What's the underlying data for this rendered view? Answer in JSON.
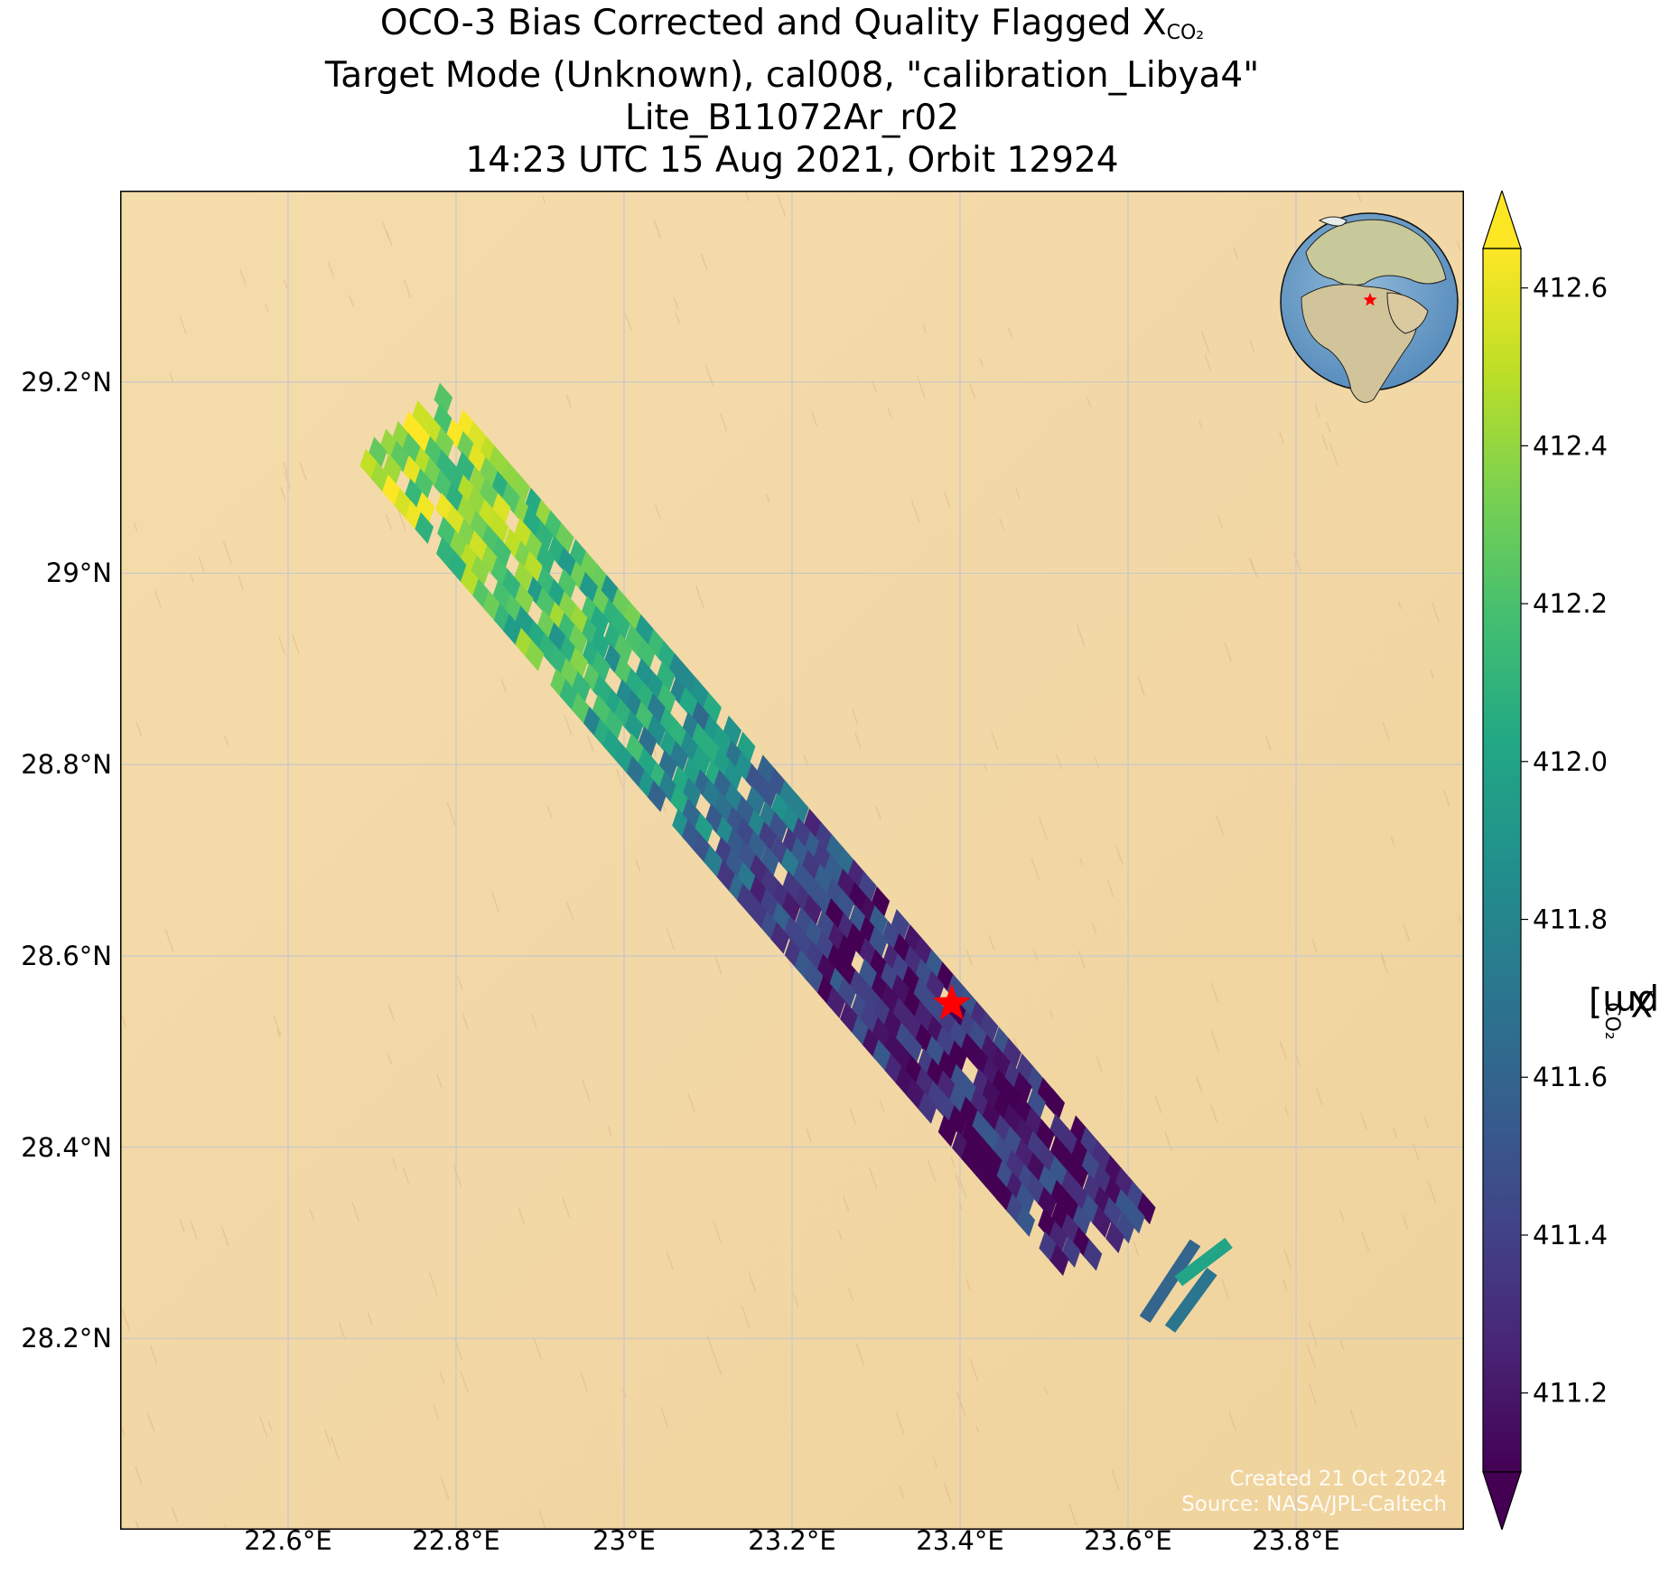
{
  "title": {
    "line1_prefix": "OCO-3 Bias Corrected and Quality Flagged X",
    "line1_sub": "CO₂",
    "line2": "Target Mode (Unknown), cal008, \"calibration_Libya4\"",
    "line3": "Lite_B11072Ar_r02",
    "line4": "14:23 UTC 15 Aug 2021, Orbit 12924"
  },
  "credit": {
    "created": "Created 21 Oct 2024",
    "source": "Source: NASA/JPL-Caltech"
  },
  "colors": {
    "background_land": "#f2d8a6",
    "grid": "#c8c8c8",
    "target_marker": "#ff0000",
    "colormap": "viridis"
  },
  "chart_data": {
    "type": "map",
    "projection": "plate-carree",
    "x_ticks": [
      22.6,
      22.8,
      23.0,
      23.2,
      23.4,
      23.6,
      23.8
    ],
    "x_tick_labels": [
      "22.6°E",
      "22.8°E",
      "23°E",
      "23.2°E",
      "23.4°E",
      "23.6°E",
      "23.8°E"
    ],
    "y_ticks": [
      29.2,
      29.0,
      28.8,
      28.6,
      28.4,
      28.2
    ],
    "y_tick_labels": [
      "29.2°N",
      "29°N",
      "28.8°N",
      "28.6°N",
      "28.4°N",
      "28.2°N"
    ],
    "xlim": [
      22.4,
      24.0
    ],
    "ylim": [
      28.0,
      29.4
    ],
    "grid": true,
    "target": {
      "name": "calibration_Libya4",
      "lon": 23.39,
      "lat": 28.55,
      "marker": "star"
    },
    "swath": {
      "start": {
        "lon": 22.73,
        "lat": 29.16
      },
      "end": {
        "lon": 23.58,
        "lat": 28.3
      },
      "width_deg": 0.135,
      "xco2_gradient": [
        {
          "position": 0.0,
          "xco2": 412.45
        },
        {
          "position": 0.25,
          "xco2": 412.15
        },
        {
          "position": 0.45,
          "xco2": 411.75
        },
        {
          "position": 0.6,
          "xco2": 411.3
        },
        {
          "position": 1.0,
          "xco2": 411.25
        }
      ]
    },
    "colorbar": {
      "label_prefix": "X",
      "label_sub": "CO₂",
      "label_suffix": " [ppm]",
      "range": [
        411.1,
        412.65
      ],
      "extend": "both",
      "ticks": [
        411.2,
        411.4,
        411.6,
        411.8,
        412.0,
        412.2,
        412.4,
        412.6
      ],
      "tick_labels": [
        "411.2",
        "411.4",
        "411.6",
        "411.8",
        "412.0",
        "412.2",
        "412.4",
        "412.6"
      ]
    },
    "inset_globe": {
      "center_lon": 15,
      "center_lat": 25,
      "marker": "star"
    }
  }
}
